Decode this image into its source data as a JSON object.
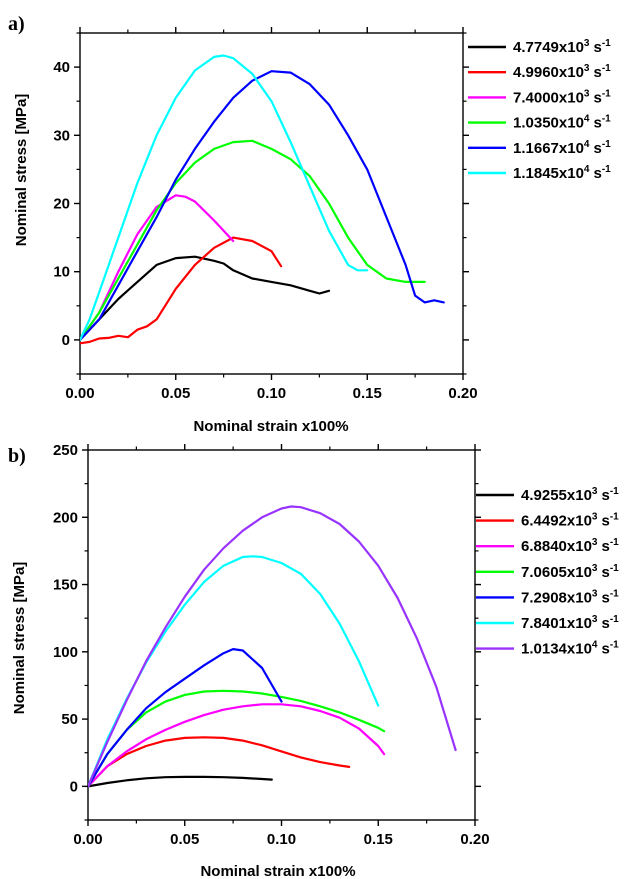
{
  "chart_data": [
    {
      "type": "line",
      "panel_label": "a)",
      "xlabel": "Nominal strain x100%",
      "ylabel": "Nominal stress [MPa]",
      "xlim": [
        0.0,
        0.2
      ],
      "ylim": [
        -5,
        45
      ],
      "xticks": [
        0.0,
        0.05,
        0.1,
        0.15,
        0.2
      ],
      "xtick_labels": [
        "0.00",
        "0.05",
        "0.10",
        "0.15",
        "0.20"
      ],
      "yticks": [
        0,
        10,
        20,
        30,
        40
      ],
      "ytick_labels": [
        "0",
        "10",
        "20",
        "30",
        "40"
      ],
      "grid": false,
      "legend_position": "right",
      "series": [
        {
          "name": "4.7749x10^3 s^-1",
          "mantissa": "4.7749x10",
          "exp": "3",
          "unit": "s",
          "unit_exp": "-1",
          "color": "#000000",
          "x": [
            0,
            0.01,
            0.02,
            0.03,
            0.04,
            0.05,
            0.06,
            0.07,
            0.075,
            0.08,
            0.09,
            0.1,
            0.11,
            0.12,
            0.125,
            0.13
          ],
          "y": [
            0,
            3.0,
            6.0,
            8.5,
            11.0,
            12.0,
            12.2,
            11.6,
            11.2,
            10.2,
            9.0,
            8.5,
            8.0,
            7.2,
            6.8,
            7.2
          ]
        },
        {
          "name": "4.9960x10^3 s^-1",
          "mantissa": "4.9960x10",
          "exp": "3",
          "unit": "s",
          "unit_exp": "-1",
          "color": "#ff0000",
          "x": [
            0,
            0.005,
            0.01,
            0.015,
            0.02,
            0.025,
            0.03,
            0.035,
            0.04,
            0.05,
            0.06,
            0.07,
            0.08,
            0.09,
            0.1,
            0.105
          ],
          "y": [
            -0.5,
            -0.3,
            0.2,
            0.3,
            0.6,
            0.4,
            1.5,
            2.0,
            3.0,
            7.5,
            11.0,
            13.5,
            15.0,
            14.5,
            13.0,
            10.8
          ]
        },
        {
          "name": "7.4000x10^3 s^-1",
          "mantissa": "7.4000x10",
          "exp": "3",
          "unit": "s",
          "unit_exp": "-1",
          "color": "#ff00ff",
          "x": [
            0,
            0.01,
            0.02,
            0.03,
            0.04,
            0.05,
            0.055,
            0.06,
            0.07,
            0.08
          ],
          "y": [
            0,
            4.0,
            10.0,
            15.5,
            19.5,
            21.2,
            21.0,
            20.3,
            17.5,
            14.5
          ]
        },
        {
          "name": "1.0350x10^4 s^-1",
          "mantissa": "1.0350x10",
          "exp": "4",
          "unit": "s",
          "unit_exp": "-1",
          "color": "#00ff00",
          "x": [
            0,
            0.01,
            0.02,
            0.03,
            0.04,
            0.05,
            0.06,
            0.07,
            0.08,
            0.09,
            0.1,
            0.11,
            0.12,
            0.13,
            0.14,
            0.15,
            0.16,
            0.17,
            0.18
          ],
          "y": [
            0,
            4.0,
            9.0,
            14.0,
            19.0,
            23.0,
            26.0,
            28.0,
            29.0,
            29.2,
            28.0,
            26.5,
            24.0,
            20.0,
            15.0,
            11.0,
            9.0,
            8.5,
            8.5
          ]
        },
        {
          "name": "1.1667x10^4 s^-1",
          "mantissa": "1.1667x10",
          "exp": "4",
          "unit": "s",
          "unit_exp": "-1",
          "color": "#0000ff",
          "x": [
            0,
            0.01,
            0.02,
            0.03,
            0.04,
            0.05,
            0.06,
            0.07,
            0.08,
            0.09,
            0.1,
            0.11,
            0.12,
            0.13,
            0.14,
            0.15,
            0.16,
            0.17,
            0.175,
            0.18,
            0.185,
            0.19
          ],
          "y": [
            0,
            3.0,
            8.0,
            13.0,
            18.0,
            23.5,
            28.0,
            32.0,
            35.5,
            38.0,
            39.4,
            39.2,
            37.5,
            34.5,
            30.0,
            25.0,
            18.0,
            11.0,
            6.5,
            5.5,
            5.8,
            5.5
          ]
        },
        {
          "name": "1.1845x10^4 s^-1",
          "mantissa": "1.1845x10",
          "exp": "4",
          "unit": "s",
          "unit_exp": "-1",
          "color": "#00ffff",
          "x": [
            0,
            0.005,
            0.01,
            0.02,
            0.03,
            0.04,
            0.05,
            0.06,
            0.07,
            0.075,
            0.08,
            0.09,
            0.1,
            0.11,
            0.12,
            0.13,
            0.14,
            0.145,
            0.15
          ],
          "y": [
            0,
            3.0,
            7.0,
            15.0,
            23.0,
            30.0,
            35.5,
            39.5,
            41.5,
            41.7,
            41.3,
            39.0,
            35.0,
            29.0,
            22.5,
            16.0,
            11.0,
            10.2,
            10.2
          ]
        }
      ]
    },
    {
      "type": "line",
      "panel_label": "b)",
      "xlabel": "Nominal strain x100%",
      "ylabel": "Nominal stress [MPa]",
      "xlim": [
        0.0,
        0.2
      ],
      "ylim": [
        -25,
        250
      ],
      "xticks": [
        0.0,
        0.05,
        0.1,
        0.15,
        0.2
      ],
      "xtick_labels": [
        "0.00",
        "0.05",
        "0.10",
        "0.15",
        "0.20"
      ],
      "yticks": [
        0,
        50,
        100,
        150,
        200,
        250
      ],
      "ytick_labels": [
        "0",
        "50",
        "100",
        "150",
        "200",
        "250"
      ],
      "grid": false,
      "legend_position": "right",
      "series": [
        {
          "name": "4.9255x10^3 s^-1",
          "mantissa": "4.9255x10",
          "exp": "3",
          "unit": "s",
          "unit_exp": "-1",
          "color": "#000000",
          "x": [
            0,
            0.01,
            0.02,
            0.03,
            0.04,
            0.05,
            0.06,
            0.07,
            0.08,
            0.09,
            0.095
          ],
          "y": [
            0,
            2.5,
            4.5,
            6.0,
            6.8,
            7.0,
            7.0,
            6.8,
            6.3,
            5.5,
            5.0
          ]
        },
        {
          "name": "6.4492x10^3 s^-1",
          "mantissa": "6.4492x10",
          "exp": "3",
          "unit": "s",
          "unit_exp": "-1",
          "color": "#ff0000",
          "x": [
            0,
            0.01,
            0.02,
            0.03,
            0.04,
            0.05,
            0.06,
            0.07,
            0.08,
            0.09,
            0.1,
            0.11,
            0.12,
            0.13,
            0.135
          ],
          "y": [
            0,
            15.0,
            24.0,
            30.0,
            34.0,
            36.0,
            36.5,
            36.0,
            34.0,
            30.5,
            26.0,
            21.5,
            18.0,
            15.5,
            14.5
          ]
        },
        {
          "name": "6.8840x10^3 s^-1",
          "mantissa": "6.8840x10",
          "exp": "3",
          "unit": "s",
          "unit_exp": "-1",
          "color": "#ff00ff",
          "x": [
            0,
            0.01,
            0.02,
            0.03,
            0.04,
            0.05,
            0.06,
            0.07,
            0.08,
            0.09,
            0.1,
            0.11,
            0.12,
            0.13,
            0.14,
            0.15,
            0.153
          ],
          "y": [
            0,
            15.0,
            26.0,
            35.0,
            42.0,
            48.0,
            53.0,
            57.0,
            59.5,
            61.0,
            61.0,
            59.5,
            56.0,
            51.0,
            43.0,
            30.0,
            24.0
          ]
        },
        {
          "name": "7.0605x10^3 s^-1",
          "mantissa": "7.0605x10",
          "exp": "3",
          "unit": "s",
          "unit_exp": "-1",
          "color": "#00ff00",
          "x": [
            0,
            0.01,
            0.02,
            0.03,
            0.04,
            0.05,
            0.06,
            0.07,
            0.08,
            0.09,
            0.1,
            0.11,
            0.12,
            0.13,
            0.14,
            0.15,
            0.153
          ],
          "y": [
            0,
            24.0,
            42.0,
            55.0,
            63.0,
            68.0,
            70.5,
            71.0,
            70.5,
            69.0,
            66.5,
            63.5,
            59.5,
            55.0,
            49.5,
            43.5,
            41.0
          ]
        },
        {
          "name": "7.2908x10^3 s^-1",
          "mantissa": "7.2908x10",
          "exp": "3",
          "unit": "s",
          "unit_exp": "-1",
          "color": "#0000ff",
          "x": [
            0,
            0.01,
            0.02,
            0.03,
            0.04,
            0.05,
            0.06,
            0.07,
            0.075,
            0.08,
            0.09,
            0.1
          ],
          "y": [
            0,
            24.0,
            42.0,
            58.0,
            70.0,
            80.0,
            90.0,
            99.0,
            102.0,
            101.0,
            88.0,
            63.0
          ]
        },
        {
          "name": "7.8401x10^3 s^-1",
          "mantissa": "7.8401x10",
          "exp": "3",
          "unit": "s",
          "unit_exp": "-1",
          "color": "#00ffff",
          "x": [
            0,
            0.01,
            0.02,
            0.03,
            0.04,
            0.05,
            0.06,
            0.07,
            0.08,
            0.085,
            0.09,
            0.1,
            0.11,
            0.12,
            0.13,
            0.14,
            0.15
          ],
          "y": [
            0,
            35.0,
            65.0,
            92.0,
            115.0,
            135.0,
            152.0,
            164.0,
            170.5,
            171.0,
            170.5,
            166.0,
            158.0,
            143.0,
            121.0,
            93.0,
            60.0
          ]
        },
        {
          "name": "1.0134x10^4 s^-1",
          "mantissa": "1.0134x10",
          "exp": "4",
          "unit": "s",
          "unit_exp": "-1",
          "color": "#9933ff",
          "x": [
            0,
            0.01,
            0.02,
            0.03,
            0.04,
            0.05,
            0.06,
            0.07,
            0.08,
            0.09,
            0.1,
            0.105,
            0.11,
            0.12,
            0.13,
            0.14,
            0.15,
            0.16,
            0.17,
            0.18,
            0.19
          ],
          "y": [
            0,
            33.0,
            64.0,
            93.0,
            118.0,
            141.0,
            161.0,
            177.0,
            190.0,
            200.0,
            206.5,
            208.0,
            207.5,
            203.0,
            195.0,
            182.0,
            164.0,
            140.0,
            110.0,
            74.0,
            27.0
          ]
        }
      ]
    }
  ]
}
